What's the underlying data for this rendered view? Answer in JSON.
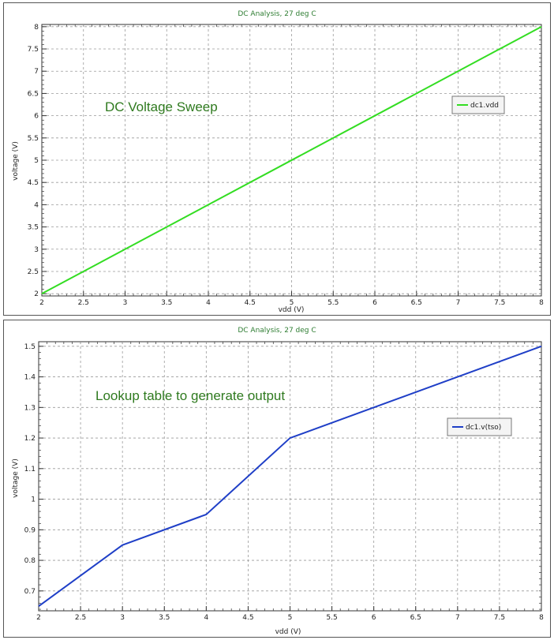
{
  "charts": [
    {
      "id": "top",
      "chart_data": {
        "type": "line",
        "title": "DC Analysis, 27 deg C",
        "annotation": "DC Voltage Sweep",
        "xlabel": "vdd (V)",
        "ylabel": "voltage (V)",
        "xlim": [
          2,
          8
        ],
        "ylim": [
          1.95,
          8.05
        ],
        "x_ticks": [
          2,
          2.5,
          3,
          3.5,
          4,
          4.5,
          5,
          5.5,
          6,
          6.5,
          7,
          7.5,
          8
        ],
        "x_tick_labels": [
          "2",
          "2.5",
          "3",
          "3.5",
          "4",
          "4.5",
          "5",
          "5.5",
          "6",
          "6.5",
          "7",
          "7.5",
          "8"
        ],
        "y_ticks": [
          2,
          2.5,
          3,
          3.5,
          4,
          4.5,
          5,
          5.5,
          6,
          6.5,
          7,
          7.5,
          8
        ],
        "y_tick_labels": [
          "2",
          "2.5",
          "3",
          "3.5",
          "4",
          "4.5",
          "5",
          "5.5",
          "6",
          "6.5",
          "7",
          "7.5",
          "8"
        ],
        "grid": true,
        "legend_position": "top-right",
        "series": [
          {
            "name": "dc1.vdd",
            "color": "#33dd22",
            "x": [
              2,
              8
            ],
            "y": [
              2,
              8
            ]
          }
        ]
      }
    },
    {
      "id": "bottom",
      "chart_data": {
        "type": "line",
        "title": "DC Analysis, 27 deg C",
        "annotation": "Lookup table to generate output",
        "xlabel": "vdd (V)",
        "ylabel": "voltage (V)",
        "xlim": [
          2,
          8
        ],
        "ylim": [
          0.635,
          1.515
        ],
        "x_ticks": [
          2,
          2.5,
          3,
          3.5,
          4,
          4.5,
          5,
          5.5,
          6,
          6.5,
          7,
          7.5,
          8
        ],
        "x_tick_labels": [
          "2",
          "2.5",
          "3",
          "3.5",
          "4",
          "4.5",
          "5",
          "5.5",
          "6",
          "6.5",
          "7",
          "7.5",
          "8"
        ],
        "y_ticks": [
          0.7,
          0.8,
          0.9,
          1,
          1.1,
          1.2,
          1.3,
          1.4,
          1.5
        ],
        "y_tick_labels": [
          "0.7",
          "0.8",
          "0.9",
          "1",
          "1.1",
          "1.2",
          "1.3",
          "1.4",
          "1.5"
        ],
        "grid": true,
        "legend_position": "top-right",
        "series": [
          {
            "name": "dc1.v(tso)",
            "color": "#1f3fc7",
            "x": [
              2,
              3,
              4,
              5,
              6,
              7,
              8
            ],
            "y": [
              0.65,
              0.85,
              0.95,
              1.2,
              1.3,
              1.4,
              1.5
            ]
          }
        ]
      }
    }
  ]
}
